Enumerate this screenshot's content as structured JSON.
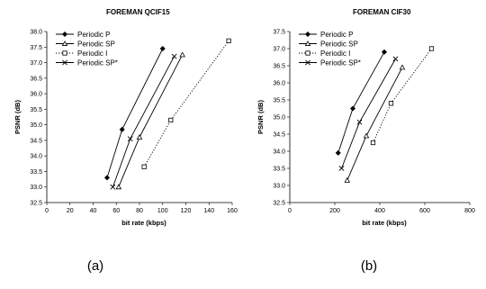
{
  "chart_data": [
    {
      "type": "line",
      "title": "FOREMAN QCIF15",
      "xlabel": "bit rate (kbps)",
      "ylabel": "PSNR (dB)",
      "xlim": [
        0,
        160
      ],
      "ylim": [
        32.5,
        38.0
      ],
      "xticks": [
        "0",
        "20",
        "40",
        "60",
        "80",
        "100",
        "120",
        "140",
        "160"
      ],
      "yticks": [
        "32.5",
        "33.0",
        "33.5",
        "34.0",
        "34.5",
        "35.0",
        "35.5",
        "36.0",
        "36.5",
        "37.0",
        "37.5",
        "38.0"
      ],
      "grid": false,
      "legend": "top-left",
      "panel_label": "(a)",
      "series": [
        {
          "name": "Periodic P",
          "marker": "diamond",
          "dash": "solid",
          "points": [
            [
              52,
              33.3
            ],
            [
              65,
              34.85
            ],
            [
              100,
              37.45
            ]
          ]
        },
        {
          "name": "Periodic SP",
          "marker": "triangle",
          "dash": "solid",
          "points": [
            [
              62,
              33.0
            ],
            [
              80,
              34.6
            ],
            [
              117,
              37.25
            ]
          ]
        },
        {
          "name": "Periodic I",
          "marker": "square",
          "dash": "dotted",
          "points": [
            [
              84,
              33.65
            ],
            [
              107,
              35.15
            ],
            [
              157,
              37.7
            ]
          ]
        },
        {
          "name": "Periodic SP*",
          "marker": "x",
          "dash": "solid",
          "points": [
            [
              57,
              33.0
            ],
            [
              72,
              34.55
            ],
            [
              110,
              37.2
            ]
          ]
        }
      ]
    },
    {
      "type": "line",
      "title": "FOREMAN CIF30",
      "xlabel": "bit rate (kbps)",
      "ylabel": "PSNR (dB)",
      "xlim": [
        0,
        800
      ],
      "ylim": [
        32.5,
        37.5
      ],
      "xticks": [
        "0",
        "200",
        "400",
        "600",
        "800"
      ],
      "yticks": [
        "32.5",
        "33.0",
        "33.5",
        "34.0",
        "34.5",
        "35.0",
        "35.5",
        "36.0",
        "36.5",
        "37.0",
        "37.5"
      ],
      "grid": false,
      "legend": "top-left",
      "panel_label": "(b)",
      "series": [
        {
          "name": "Periodic P",
          "marker": "diamond",
          "dash": "solid",
          "points": [
            [
              215,
              33.95
            ],
            [
              280,
              35.25
            ],
            [
              420,
              36.9
            ]
          ]
        },
        {
          "name": "Periodic SP",
          "marker": "triangle",
          "dash": "solid",
          "points": [
            [
              255,
              33.15
            ],
            [
              340,
              34.45
            ],
            [
              500,
              36.45
            ]
          ]
        },
        {
          "name": "Periodic I",
          "marker": "square",
          "dash": "dotted",
          "points": [
            [
              370,
              34.25
            ],
            [
              450,
              35.4
            ],
            [
              630,
              37.0
            ]
          ]
        },
        {
          "name": "Periodic SP*",
          "marker": "x",
          "dash": "solid",
          "points": [
            [
              230,
              33.5
            ],
            [
              310,
              34.85
            ],
            [
              470,
              36.7
            ]
          ]
        }
      ]
    }
  ]
}
